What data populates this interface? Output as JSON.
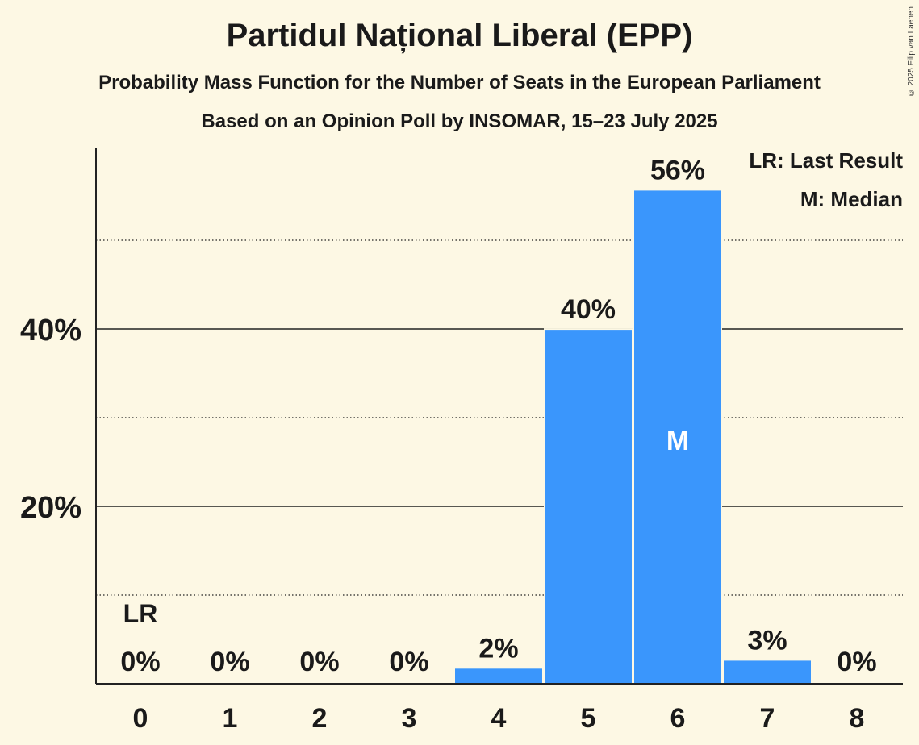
{
  "chart_data": {
    "type": "bar",
    "title": "Partidul Național Liberal (EPP)",
    "subtitle": "Probability Mass Function for the Number of Seats in the European Parliament",
    "subtitle2": "Based on an Opinion Poll by INSOMAR, 15–23 July 2025",
    "categories": [
      "0",
      "1",
      "2",
      "3",
      "4",
      "5",
      "6",
      "7",
      "8"
    ],
    "values": [
      0,
      0,
      0,
      0,
      2,
      40,
      56,
      3,
      0
    ],
    "bar_values": [
      0,
      0,
      0,
      0,
      1.7,
      39.9,
      55.6,
      2.6,
      0
    ],
    "data_labels": [
      "0%",
      "0%",
      "0%",
      "0%",
      "2%",
      "40%",
      "56%",
      "3%",
      "0%"
    ],
    "ylim": [
      0,
      60
    ],
    "yticks": [
      20,
      40
    ],
    "ytick_labels": [
      "20%",
      "40%"
    ],
    "minor_gridlines": [
      10,
      30,
      50
    ],
    "last_result_index": 0,
    "last_result_label": "LR",
    "median_index": 6,
    "median_label": "M",
    "xlabel": "",
    "ylabel": "",
    "bar_color": "#3a96fc"
  },
  "legend": {
    "last_result": "LR: Last Result",
    "median": "M: Median"
  },
  "copyright": "© 2025 Filip van Laenen"
}
